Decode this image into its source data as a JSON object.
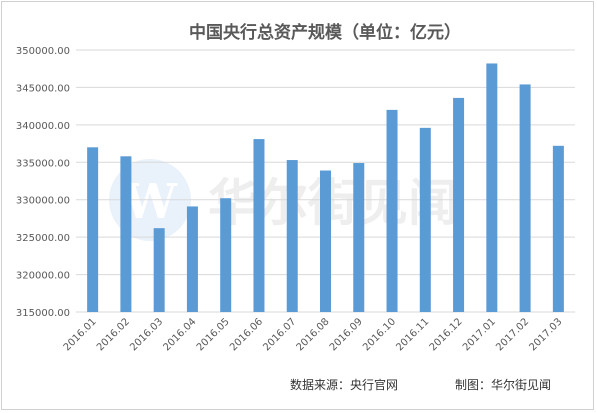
{
  "chart_data": {
    "type": "bar",
    "title": "中国央行总资产规模（单位：亿元）",
    "categories": [
      "2016.01",
      "2016.02",
      "2016.03",
      "2016.04",
      "2016.05",
      "2016.06",
      "2016.07",
      "2016.08",
      "2016.09",
      "2016.10",
      "2016.11",
      "2016.12",
      "2017.01",
      "2017.02",
      "2017.03"
    ],
    "values": [
      337000,
      335800,
      326200,
      329100,
      330200,
      338100,
      335300,
      333900,
      334900,
      342000,
      339600,
      343600,
      348200,
      345400,
      337200
    ],
    "ylim": [
      315000,
      350000
    ],
    "yticks": [
      "315000.00",
      "320000.00",
      "325000.00",
      "330000.00",
      "335000.00",
      "340000.00",
      "345000.00",
      "350000.00"
    ],
    "grid": true,
    "legend": "none",
    "bar_color": "#5b9bd5"
  },
  "footer": {
    "source": "数据来源：央行官网",
    "credit": "制图：华尔街见闻"
  },
  "watermark": {
    "text": "华尔街见闻"
  }
}
